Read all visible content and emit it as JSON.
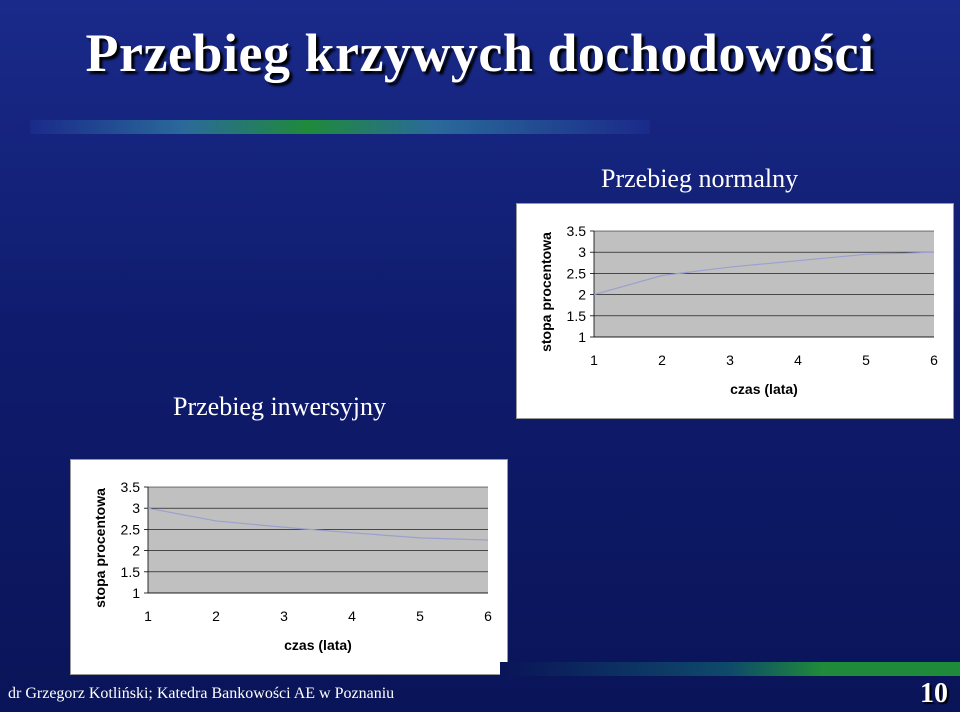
{
  "slide": {
    "title": "Przebieg krzywych dochodowości",
    "footer": "dr Grzegorz Kotliński; Katedra Bankowości AE w Poznaniu",
    "page_number": "10"
  },
  "labels": {
    "normal": "Przebieg normalny",
    "inverse": "Przebieg inwersyjny"
  },
  "chart_data": [
    {
      "type": "line",
      "name_label": "Przebieg normalny",
      "x": [
        1,
        2,
        3,
        4,
        5,
        6
      ],
      "categories": [
        "1",
        "2",
        "3",
        "4",
        "5",
        "6"
      ],
      "values": [
        2.0,
        2.45,
        2.65,
        2.8,
        2.95,
        3.0
      ],
      "xlabel": "czas (lata)",
      "ylabel": "stopa procentowa",
      "ylim": [
        1,
        3.5
      ],
      "yticks": [
        "3.5",
        "3",
        "2.5",
        "2",
        "1.5",
        "1"
      ],
      "line_color": "#9aa0d0",
      "plot_bg": "#c0c0c0"
    },
    {
      "type": "line",
      "name_label": "Przebieg inwersyjny",
      "x": [
        1,
        2,
        3,
        4,
        5,
        6
      ],
      "categories": [
        "1",
        "2",
        "3",
        "4",
        "5",
        "6"
      ],
      "values": [
        3.0,
        2.7,
        2.55,
        2.42,
        2.3,
        2.25
      ],
      "xlabel": "czas (lata)",
      "ylabel": "stopa procentowa",
      "ylim": [
        1,
        3.5
      ],
      "yticks": [
        "3.5",
        "3",
        "2.5",
        "2",
        "1.5",
        "1"
      ],
      "line_color": "#9aa0d0",
      "plot_bg": "#c0c0c0"
    }
  ]
}
